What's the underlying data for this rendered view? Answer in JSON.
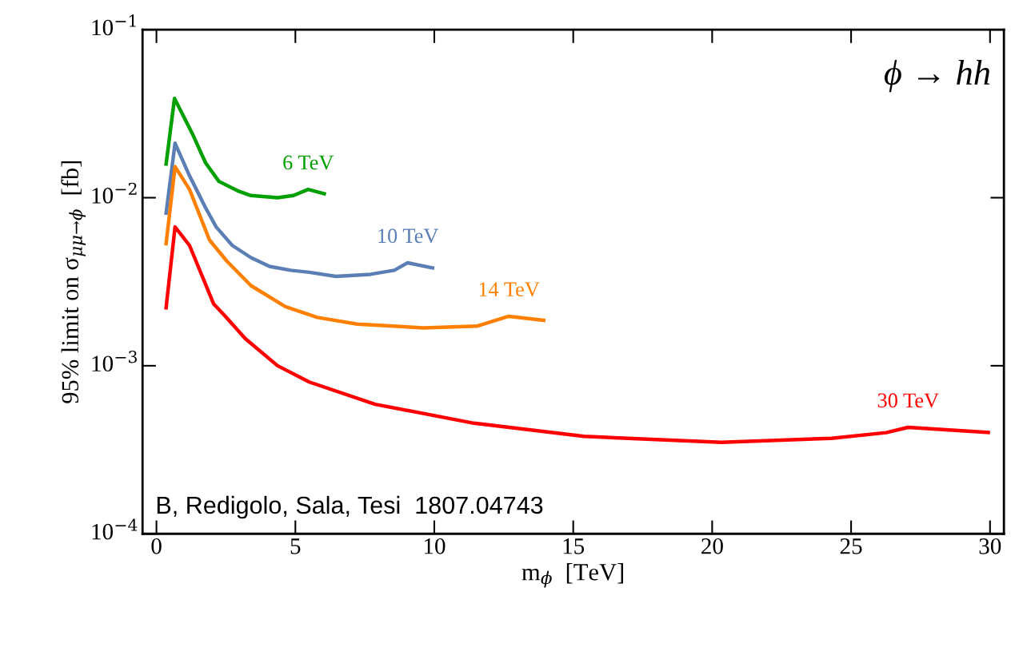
{
  "chart_data": {
    "type": "line",
    "xlabel": "m$_{ϕ}$  [TeV]",
    "ylabel": "95% limit on σ$_{μμ→ϕ}$  [fb]",
    "log": "y",
    "grid": false,
    "legend": false,
    "marker": "none",
    "line_style": "solid",
    "xlim": [
      -0.5,
      30.5
    ],
    "xticks": [
      0,
      5,
      10,
      15,
      20,
      25,
      30
    ],
    "ylim": [
      0.0001,
      0.1
    ],
    "yticks": [
      {
        "value": 0.0001,
        "label": "10$^{−4}$"
      },
      {
        "value": 0.001,
        "label": "10$^{−3}$"
      },
      {
        "value": 0.01,
        "label": "10$^{−2}$"
      },
      {
        "value": 0.1,
        "label": "10$^{−1}$"
      }
    ],
    "annotations": [
      "ϕ → hh",
      "B, Redigolo, Sala, Tesi  1807.04743"
    ],
    "series": [
      {
        "name": "6 TeV",
        "color": "#00a000",
        "x": [
          0.34,
          0.65,
          1.29,
          1.77,
          2.25,
          2.92,
          3.4,
          4.36,
          4.93,
          5.46,
          6.1
        ],
        "values": [
          0.0155,
          0.039,
          0.0241,
          0.0161,
          0.0125,
          0.011,
          0.0103,
          0.01,
          0.0103,
          0.0112,
          0.0105
        ]
      },
      {
        "name": "10 TeV",
        "color": "#5b7fb5",
        "x": [
          0.34,
          0.67,
          1.19,
          1.77,
          2.15,
          2.73,
          3.4,
          4.07,
          4.83,
          5.5,
          6.46,
          7.7,
          8.56,
          9.04,
          10.0
        ],
        "values": [
          0.0079,
          0.0211,
          0.0135,
          0.0087,
          0.0067,
          0.0052,
          0.0044,
          0.0039,
          0.0037,
          0.0036,
          0.0034,
          0.0035,
          0.0037,
          0.0041,
          0.0038
        ]
      },
      {
        "name": "14 TeV",
        "color": "#ff8000",
        "x": [
          0.34,
          0.67,
          1.19,
          1.91,
          2.53,
          3.4,
          4.64,
          5.79,
          7.23,
          9.62,
          11.53,
          12.68,
          14.0
        ],
        "values": [
          0.0052,
          0.0153,
          0.0112,
          0.0056,
          0.0042,
          0.003,
          0.00225,
          0.00194,
          0.00177,
          0.00168,
          0.00172,
          0.00197,
          0.00186
        ]
      },
      {
        "name": "30 TeV",
        "color": "#ff0000",
        "x": [
          0.34,
          0.67,
          1.19,
          2.06,
          2.44,
          3.2,
          4.36,
          5.5,
          7.87,
          11.43,
          15.39,
          20.33,
          24.29,
          26.26,
          27.05,
          30.0
        ],
        "values": [
          0.00216,
          0.0067,
          0.0052,
          0.00233,
          0.002,
          0.00145,
          0.001,
          0.0008,
          0.00059,
          0.000455,
          0.00038,
          0.00035,
          0.00037,
          0.0004,
          0.00043,
          0.0004
        ]
      }
    ]
  }
}
